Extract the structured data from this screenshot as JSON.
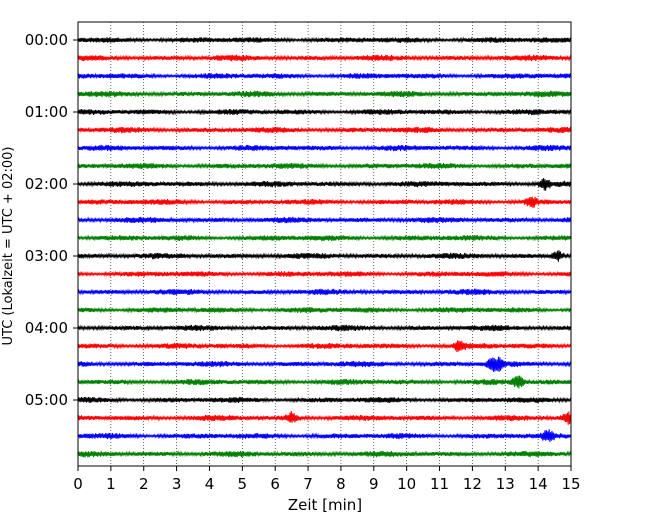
{
  "chart_data": {
    "type": "line",
    "xlabel": "Zeit  [min]",
    "ylabel": "UTC (Lokalzeit = UTC + 02:00)",
    "xlim": [
      0,
      15
    ],
    "x_ticks": [
      "0",
      "1",
      "2",
      "3",
      "4",
      "5",
      "6",
      "7",
      "8",
      "9",
      "10",
      "11",
      "12",
      "13",
      "14",
      "15"
    ],
    "y_ticks": [
      "00:00",
      "01:00",
      "02:00",
      "03:00",
      "04:00",
      "05:00"
    ],
    "grid": "vertical dotted at each minute",
    "rows_per_hour": 4,
    "minutes_per_row": 15,
    "color_cycle": [
      "#000000",
      "#ff0000",
      "#0000ff",
      "#008000"
    ],
    "rows": [
      {
        "start": "00:00",
        "color": "#000000"
      },
      {
        "start": "00:15",
        "color": "#ff0000"
      },
      {
        "start": "00:30",
        "color": "#0000ff"
      },
      {
        "start": "00:45",
        "color": "#008000"
      },
      {
        "start": "01:00",
        "color": "#000000"
      },
      {
        "start": "01:15",
        "color": "#ff0000"
      },
      {
        "start": "01:30",
        "color": "#0000ff"
      },
      {
        "start": "01:45",
        "color": "#008000"
      },
      {
        "start": "02:00",
        "color": "#000000"
      },
      {
        "start": "02:15",
        "color": "#ff0000"
      },
      {
        "start": "02:30",
        "color": "#0000ff"
      },
      {
        "start": "02:45",
        "color": "#008000"
      },
      {
        "start": "03:00",
        "color": "#000000"
      },
      {
        "start": "03:15",
        "color": "#ff0000"
      },
      {
        "start": "03:30",
        "color": "#0000ff"
      },
      {
        "start": "03:45",
        "color": "#008000"
      },
      {
        "start": "04:00",
        "color": "#000000"
      },
      {
        "start": "04:15",
        "color": "#ff0000"
      },
      {
        "start": "04:30",
        "color": "#0000ff"
      },
      {
        "start": "04:45",
        "color": "#008000"
      },
      {
        "start": "05:00",
        "color": "#000000"
      },
      {
        "start": "05:15",
        "color": "#ff0000"
      },
      {
        "start": "05:30",
        "color": "#0000ff"
      },
      {
        "start": "05:45",
        "color": "#008000"
      }
    ],
    "spikes": [
      {
        "row": 8,
        "minute": 14.2
      },
      {
        "row": 9,
        "minute": 13.8
      },
      {
        "row": 12,
        "minute": 14.6
      },
      {
        "row": 17,
        "minute": 11.6
      },
      {
        "row": 18,
        "minute": 12.6
      },
      {
        "row": 18,
        "minute": 12.8
      },
      {
        "row": 19,
        "minute": 13.4
      },
      {
        "row": 21,
        "minute": 6.5
      },
      {
        "row": 21,
        "minute": 14.9
      },
      {
        "row": 22,
        "minute": 14.3
      }
    ]
  }
}
